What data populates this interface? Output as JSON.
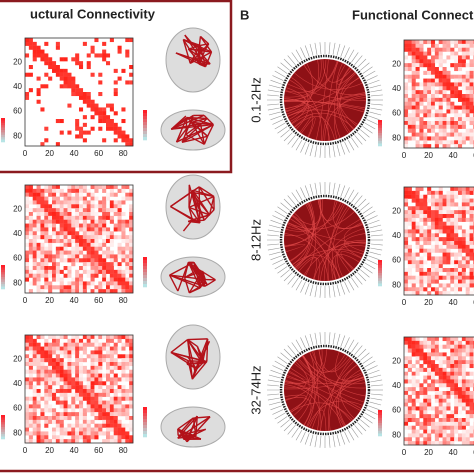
{
  "panel_a": {
    "title": "uctural Connectivity"
  },
  "panel_b": {
    "letter": "B",
    "title": "Functional Connectivi"
  },
  "bands": [
    "0.1-2Hz",
    "8-12Hz",
    "32-74Hz"
  ],
  "matrix_ticks": [
    "0",
    "20",
    "40",
    "60",
    "80"
  ]
}
